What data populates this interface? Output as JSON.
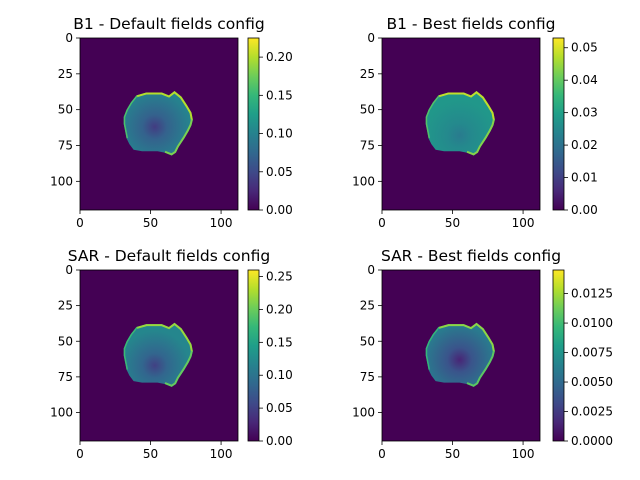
{
  "chart_data": [
    {
      "type": "heatmap",
      "title": "B1 - Default fields config",
      "x_ticks": [
        0,
        50,
        100
      ],
      "y_ticks": [
        0,
        25,
        50,
        75,
        100
      ],
      "xlim": [
        0,
        112
      ],
      "ylim": [
        0,
        120
      ],
      "colorbar": {
        "min": 0.0,
        "max": 0.225,
        "ticks": [
          "0.00",
          "0.05",
          "0.10",
          "0.15",
          "0.20"
        ]
      },
      "colormap": "viridis",
      "region": {
        "center": [
          55,
          60
        ],
        "interior_level": 0.1,
        "rim_level": 0.2,
        "hotspot": [
          53,
          62
        ],
        "hotspot_level": 0.04
      }
    },
    {
      "type": "heatmap",
      "title": "B1 - Best fields config",
      "x_ticks": [
        0,
        50,
        100
      ],
      "y_ticks": [
        0,
        25,
        50,
        75,
        100
      ],
      "xlim": [
        0,
        112
      ],
      "ylim": [
        0,
        120
      ],
      "colorbar": {
        "min": 0.0,
        "max": 0.053,
        "ticks": [
          "0.00",
          "0.01",
          "0.02",
          "0.03",
          "0.04",
          "0.05"
        ]
      },
      "colormap": "viridis",
      "region": {
        "center": [
          55,
          60
        ],
        "interior_level": 0.028,
        "rim_level": 0.048,
        "hotspot": [
          55,
          68
        ],
        "hotspot_level": 0.022
      }
    },
    {
      "type": "heatmap",
      "title": "SAR - Default fields config",
      "x_ticks": [
        0,
        50,
        100
      ],
      "y_ticks": [
        0,
        25,
        50,
        75,
        100
      ],
      "xlim": [
        0,
        112
      ],
      "ylim": [
        0,
        120
      ],
      "colorbar": {
        "min": 0.0,
        "max": 0.26,
        "ticks": [
          "0.00",
          "0.05",
          "0.10",
          "0.15",
          "0.20",
          "0.25"
        ]
      },
      "colormap": "viridis",
      "region": {
        "center": [
          55,
          60
        ],
        "interior_level": 0.12,
        "rim_level": 0.22,
        "hotspot": [
          53,
          67
        ],
        "hotspot_level": 0.05
      }
    },
    {
      "type": "heatmap",
      "title": "SAR - Best fields config",
      "x_ticks": [
        0,
        50,
        100
      ],
      "y_ticks": [
        0,
        25,
        50,
        75,
        100
      ],
      "xlim": [
        0,
        112
      ],
      "ylim": [
        0,
        120
      ],
      "colorbar": {
        "min": 0.0,
        "max": 0.0145,
        "ticks": [
          "0.0000",
          "0.0025",
          "0.0050",
          "0.0075",
          "0.0100",
          "0.0125"
        ]
      },
      "colormap": "viridis",
      "region": {
        "center": [
          55,
          60
        ],
        "interior_level": 0.006,
        "rim_level": 0.012,
        "hotspot": [
          55,
          63
        ],
        "hotspot_level": 0.0015
      }
    }
  ]
}
